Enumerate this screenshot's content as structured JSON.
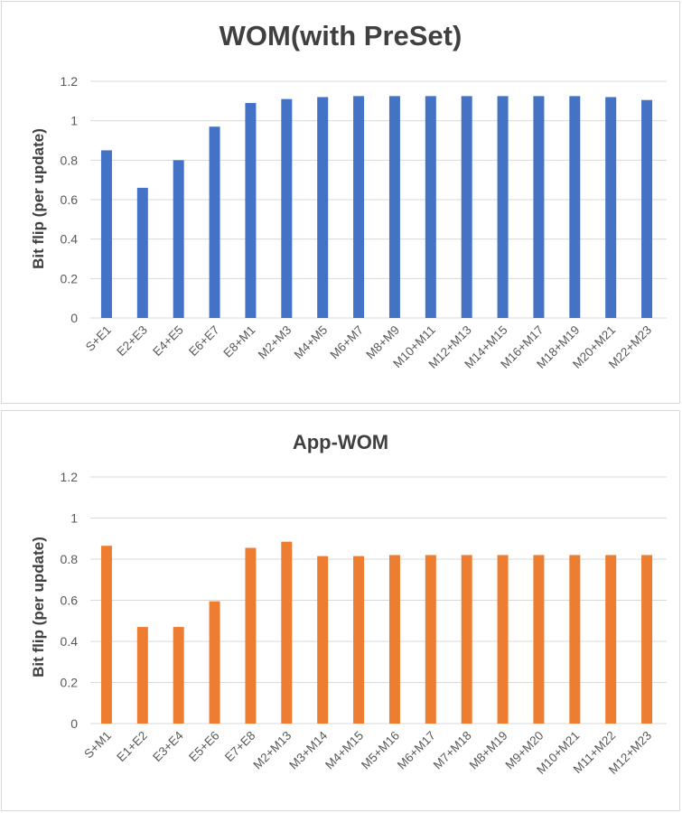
{
  "chart_data": [
    {
      "type": "bar",
      "title": "WOM(with PreSet)",
      "ylabel": "Bit flip (per update)",
      "xlabel": "",
      "ylim": [
        0,
        1.2
      ],
      "yticks": [
        "0",
        "0.2",
        "0.4",
        "0.6",
        "0.8",
        "1",
        "1.2"
      ],
      "grid": true,
      "color": "#4472c4",
      "categories": [
        "S+E1",
        "E2+E3",
        "E4+E5",
        "E6+E7",
        "E8+M1",
        "M2+M3",
        "M4+M5",
        "M6+M7",
        "M8+M9",
        "M10+M11",
        "M12+M13",
        "M14+M15",
        "M16+M17",
        "M18+M19",
        "M20+M21",
        "M22+M23"
      ],
      "values": [
        0.85,
        0.66,
        0.8,
        0.97,
        1.09,
        1.11,
        1.12,
        1.125,
        1.125,
        1.125,
        1.125,
        1.125,
        1.125,
        1.125,
        1.12,
        1.105
      ]
    },
    {
      "type": "bar",
      "title": "App-WOM",
      "ylabel": "Bit flip (per update)",
      "xlabel": "",
      "ylim": [
        0,
        1.2
      ],
      "yticks": [
        "0",
        "0.2",
        "0.4",
        "0.6",
        "0.8",
        "1",
        "1.2"
      ],
      "grid": true,
      "color": "#ed7d31",
      "categories": [
        "S+M1",
        "E1+E2",
        "E3+E4",
        "E5+E6",
        "E7+E8",
        "M2+M13",
        "M3+M14",
        "M4+M15",
        "M5+M16",
        "M6+M17",
        "M7+M18",
        "M8+M19",
        "M9+M20",
        "M10+M21",
        "M11+M22",
        "M12+M23"
      ],
      "values": [
        0.865,
        0.47,
        0.47,
        0.595,
        0.855,
        0.885,
        0.815,
        0.815,
        0.82,
        0.82,
        0.82,
        0.82,
        0.82,
        0.82,
        0.82,
        0.82
      ]
    }
  ]
}
